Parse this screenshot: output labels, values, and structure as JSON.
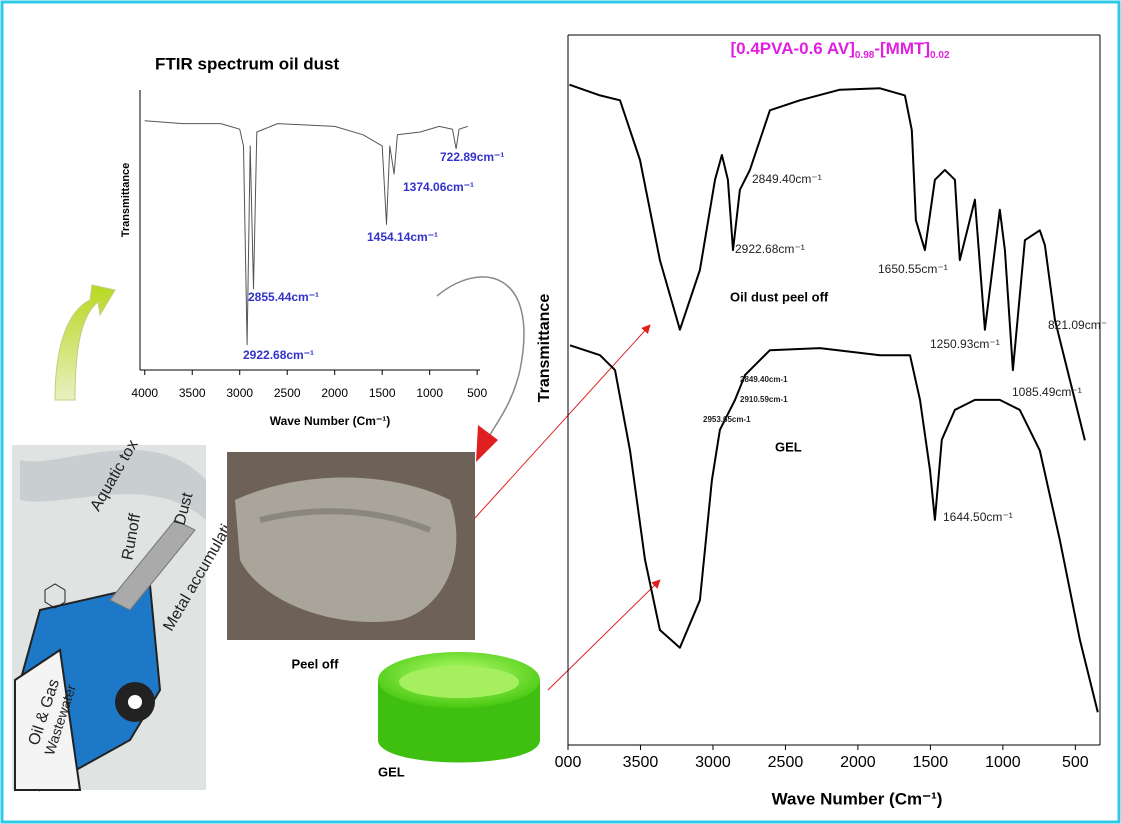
{
  "chart_data": [
    {
      "type": "line",
      "title": "FTIR spectrum oil dust",
      "ylabel": "Transmittance",
      "xlabel": "Wave Number (Cm⁻¹)",
      "xlim": [
        4050,
        470
      ],
      "ylim": [
        0,
        100
      ],
      "xticks": [
        4000,
        3500,
        3000,
        2500,
        2000,
        1500,
        1000,
        500
      ],
      "color": "#555555",
      "x": [
        4000,
        3600,
        3200,
        3000,
        2960,
        2922,
        2890,
        2855,
        2820,
        2600,
        2000,
        1700,
        1600,
        1500,
        1454,
        1420,
        1374,
        1340,
        1100,
        900,
        760,
        722,
        690,
        600
      ],
      "values": [
        89,
        88,
        88,
        86,
        80,
        9,
        80,
        29,
        85,
        88,
        87,
        84,
        82,
        80,
        52,
        80,
        70,
        84,
        85,
        87,
        86,
        79,
        86,
        87
      ],
      "annotations": [
        "722.89cm⁻¹",
        "1374.06cm⁻¹",
        "1454.14cm⁻¹",
        "2855.44cm⁻¹",
        "2922.68cm⁻¹"
      ]
    },
    {
      "type": "line",
      "title_parts": [
        "[0.4PVA-0.6 AV]",
        "0.98",
        "-[MMT]",
        "0.02"
      ],
      "ylabel": "Transmittance",
      "xlabel": "Wave Number (Cm⁻¹)",
      "xlim": [
        4000,
        330
      ],
      "ylim": [
        0,
        100
      ],
      "xticks": [
        {
          "value": 4000,
          "label": "000"
        },
        3500,
        3000,
        2500,
        2000,
        1500,
        1000,
        500
      ],
      "series": [
        {
          "name": "Oil dust peel off",
          "color": "#000000",
          "x": [
            3990,
            3779,
            3641,
            3503,
            3366,
            3228,
            3090,
            2986,
            2938,
            2897,
            2862,
            2814,
            2745,
            2607,
            2400,
            2124,
            1848,
            1676,
            1628,
            1600,
            1538,
            1469,
            1400,
            1331,
            1297,
            1193,
            1124,
            1021,
            986,
            931,
            848,
            745,
            710,
            641,
            434
          ],
          "values": [
            93,
            91.5,
            90.8,
            82.4,
            68.3,
            58.5,
            66.9,
            79.6,
            83.1,
            79.6,
            69.7,
            78.2,
            81,
            89.4,
            90.8,
            92.3,
            92.5,
            91.5,
            86.6,
            73.9,
            69.7,
            79.6,
            81,
            79.6,
            68.3,
            76.8,
            58.5,
            75.4,
            69.7,
            52.8,
            71.1,
            72.5,
            70.4,
            59.9,
            42.9
          ]
        },
        {
          "name": "GEL",
          "color": "#000000",
          "x": [
            3986,
            3779,
            3676,
            3572,
            3469,
            3366,
            3228,
            3090,
            3007,
            2952,
            2848,
            2779,
            2607,
            2262,
            1848,
            1641,
            1572,
            1503,
            1469,
            1421,
            1331,
            1193,
            1021,
            883,
            745,
            607,
            469,
            345
          ],
          "values": [
            56.3,
            54.9,
            52.8,
            41.5,
            26.1,
            16.2,
            13.7,
            20.4,
            37.3,
            44.4,
            48.6,
            52.1,
            55.6,
            55.9,
            54.9,
            54.9,
            48.6,
            38.7,
            31.7,
            43,
            47.2,
            48.6,
            48.6,
            47.2,
            41.5,
            28.9,
            14.8,
            4.6
          ]
        }
      ],
      "annotations": [
        "2849.40cm⁻¹",
        "2922.68cm⁻¹",
        "1650.55cm⁻¹",
        "1250.93cm⁻¹",
        "821.09cm⁻",
        "1085.49cm⁻¹",
        "2849.40cm-1",
        "2910.59cm-1",
        "2953.65cm-1",
        "1644.50cm⁻¹"
      ]
    }
  ],
  "labels": {
    "peel": "Peel off",
    "gel": "GEL"
  },
  "illustration": {
    "aquatic": "Aquatic tox",
    "runoff": "Runoff",
    "dust": "Dust",
    "metal": "Metal accumulati",
    "oil": "Oil & Gas",
    "waste": "Wastewater"
  }
}
